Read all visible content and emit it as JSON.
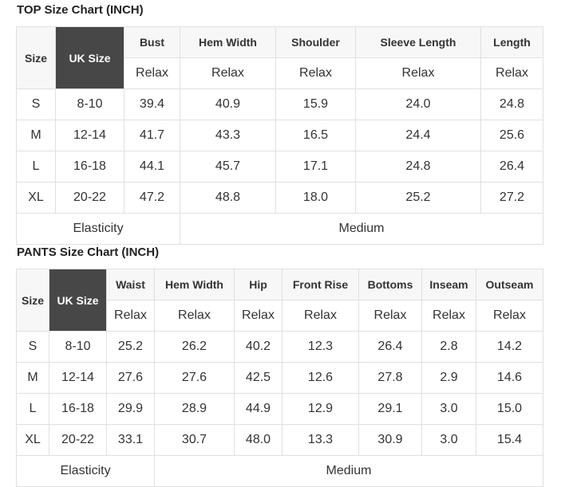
{
  "top": {
    "title": "TOP Size Chart (INCH)",
    "size_label": "Size",
    "uk_label": "UK Size",
    "headers": [
      "Bust",
      "Hem Width",
      "Shoulder",
      "Sleeve Length",
      "Length"
    ],
    "fit": "Relax",
    "rows": [
      [
        "S",
        "8-10",
        "39.4",
        "40.9",
        "15.9",
        "24.0",
        "24.8"
      ],
      [
        "M",
        "12-14",
        "41.7",
        "43.3",
        "16.5",
        "24.4",
        "25.6"
      ],
      [
        "L",
        "16-18",
        "44.1",
        "45.7",
        "17.1",
        "24.8",
        "26.4"
      ],
      [
        "XL",
        "20-22",
        "47.2",
        "48.8",
        "18.0",
        "25.2",
        "27.2"
      ]
    ],
    "elasticity_label": "Elasticity",
    "elasticity_value": "Medium"
  },
  "pants": {
    "title": "PANTS Size Chart (INCH)",
    "size_label": "Size",
    "uk_label": "UK Size",
    "headers": [
      "Waist",
      "Hem Width",
      "Hip",
      "Front Rise",
      "Bottoms",
      "Inseam",
      "Outseam"
    ],
    "fit": "Relax",
    "rows": [
      [
        "S",
        "8-10",
        "25.2",
        "26.2",
        "40.2",
        "12.3",
        "26.4",
        "2.8",
        "14.2"
      ],
      [
        "M",
        "12-14",
        "27.6",
        "27.6",
        "42.5",
        "12.6",
        "27.8",
        "2.9",
        "14.6"
      ],
      [
        "L",
        "16-18",
        "29.9",
        "28.9",
        "44.9",
        "12.9",
        "29.1",
        "3.0",
        "15.0"
      ],
      [
        "XL",
        "20-22",
        "33.1",
        "30.7",
        "48.0",
        "13.3",
        "30.9",
        "3.0",
        "15.4"
      ]
    ],
    "elasticity_label": "Elasticity",
    "elasticity_value": "Medium"
  }
}
